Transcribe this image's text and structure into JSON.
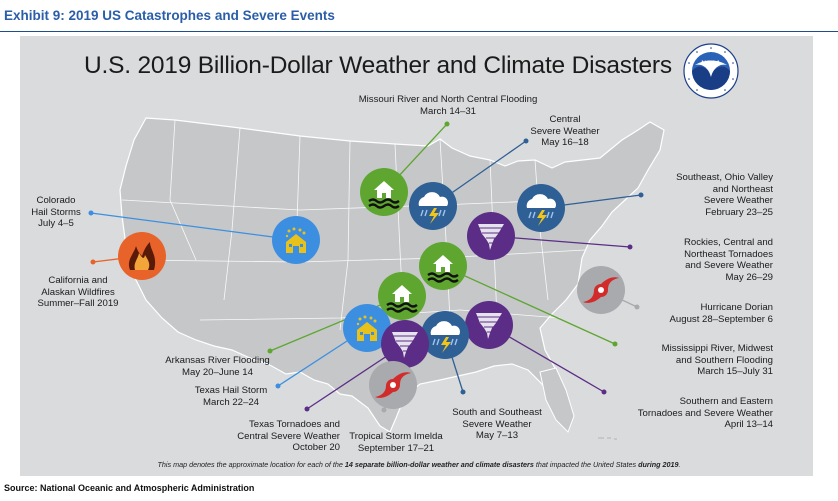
{
  "exhibit_title": "Exhibit 9: 2019 US Catastrophes and Severe Events",
  "map_title": "U.S. 2019 Billion-Dollar Weather and Climate Disasters",
  "logo_text": "NOAA",
  "footnote": {
    "prefix": "This map denotes the approximate location for each of the ",
    "bold1": "14 separate billion-dollar weather and climate disasters",
    "middle": " that impacted the United States ",
    "bold2": "during 2019",
    "suffix": "."
  },
  "source": "Source:  National Oceanic and Atmospheric Administration",
  "colors": {
    "panel": "#d9dbdd",
    "land": "#c5c7c9",
    "flood": "#5ea630",
    "severe_weather": "#2e5f95",
    "tornado": "#5b2d86",
    "hail": "#3c8fe0",
    "wildfire": "#e8632a",
    "tropical": "#a8aaad"
  },
  "events": [
    {
      "id": "missouri",
      "type": "flood",
      "icon": "house-flood-icon",
      "lines": [
        "Missouri River and North Central Flooding",
        "March 14–31"
      ]
    },
    {
      "id": "central",
      "type": "severe_weather",
      "icon": "storm-cloud-icon",
      "lines": [
        "Central",
        "Severe Weather",
        "May 16–18"
      ]
    },
    {
      "id": "southeast-ohio",
      "type": "severe_weather",
      "icon": "storm-cloud-icon",
      "lines": [
        "Southeast, Ohio Valley",
        "and Northeast",
        "Severe Weather",
        "February 23–25"
      ]
    },
    {
      "id": "rockies",
      "type": "tornado",
      "icon": "tornado-icon",
      "lines": [
        "Rockies, Central and",
        "Northeast Tornadoes",
        "and Severe Weather",
        "May 26–29"
      ]
    },
    {
      "id": "dorian",
      "type": "tropical",
      "icon": "hurricane-icon",
      "lines": [
        "Hurricane Dorian",
        "August 28–September 6"
      ]
    },
    {
      "id": "mississippi",
      "type": "flood",
      "icon": "house-flood-icon",
      "lines": [
        "Mississippi River, Midwest",
        "and Southern Flooding",
        "March 15–July 31"
      ]
    },
    {
      "id": "south-eastern",
      "type": "tornado",
      "icon": "tornado-icon",
      "lines": [
        "Southern and Eastern",
        "Tornadoes and Severe Weather",
        "April 13–14"
      ]
    },
    {
      "id": "south-southeast",
      "type": "severe_weather",
      "icon": "storm-cloud-icon",
      "lines": [
        "South and Southeast",
        "Severe Weather",
        "May 7–13"
      ]
    },
    {
      "id": "imelda",
      "type": "tropical",
      "icon": "hurricane-icon",
      "lines": [
        "Tropical Storm Imelda",
        "September 17–21"
      ]
    },
    {
      "id": "texas-tornadoes",
      "type": "tornado",
      "icon": "tornado-icon",
      "lines": [
        "Texas Tornadoes and",
        "Central Severe Weather",
        "October 20"
      ]
    },
    {
      "id": "texas-hail",
      "type": "hail",
      "icon": "hail-house-icon",
      "lines": [
        "Texas Hail Storm",
        "March 22–24"
      ]
    },
    {
      "id": "arkansas",
      "type": "flood",
      "icon": "house-flood-icon",
      "lines": [
        "Arkansas River Flooding",
        "May 20–June 14"
      ]
    },
    {
      "id": "colorado-hail",
      "type": "hail",
      "icon": "hail-house-icon",
      "lines": [
        "Colorado",
        "Hail Storms",
        "July 4–5"
      ]
    },
    {
      "id": "california",
      "type": "wildfire",
      "icon": "wildfire-icon",
      "lines": [
        "California and",
        "Alaskan Wildfires",
        "Summer–Fall 2019"
      ]
    }
  ]
}
